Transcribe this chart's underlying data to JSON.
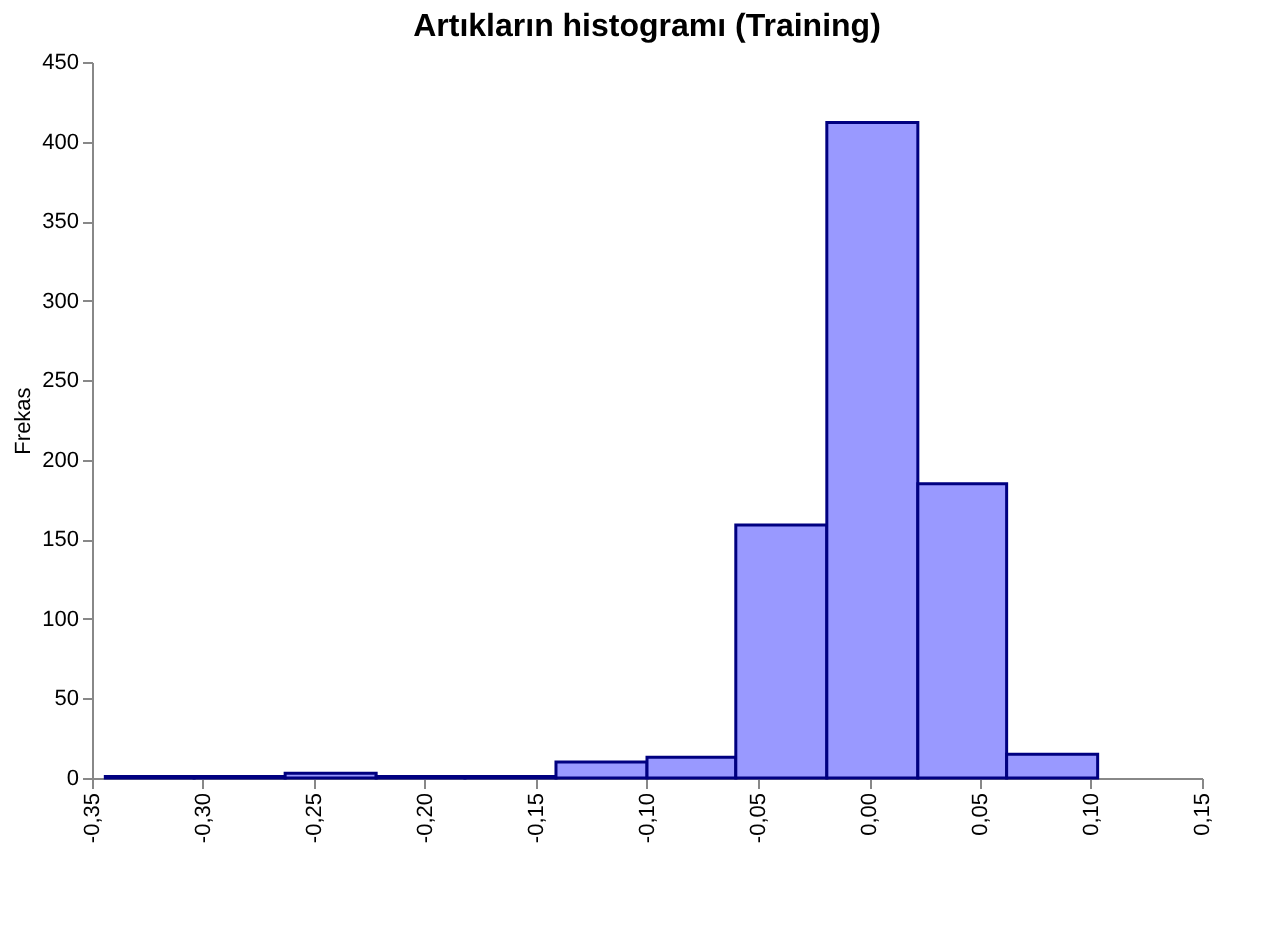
{
  "chart_data": {
    "type": "histogram",
    "title": "Artıkların histogramı (Training)",
    "ylabel": "Frekas",
    "bins": [
      -0.344,
      -0.304,
      -0.263,
      -0.222,
      -0.182,
      -0.141,
      -0.1,
      -0.06,
      -0.019,
      0.022,
      0.062,
      0.103
    ],
    "values": [
      1,
      1,
      3,
      1,
      1,
      10,
      13,
      159,
      412,
      185,
      15
    ],
    "color": "#9999ff",
    "xlim": [
      -0.35,
      0.15
    ],
    "xticks": [
      {
        "value": -0.35,
        "label": "-0,35"
      },
      {
        "value": -0.3,
        "label": "-0,30"
      },
      {
        "value": -0.25,
        "label": "-0,25"
      },
      {
        "value": -0.2,
        "label": "-0,20"
      },
      {
        "value": -0.15,
        "label": "-0,15"
      },
      {
        "value": -0.1,
        "label": "-0,10"
      },
      {
        "value": -0.05,
        "label": "-0,05"
      },
      {
        "value": 0,
        "label": "0,00"
      },
      {
        "value": 0.05,
        "label": "0,05"
      },
      {
        "value": 0.1,
        "label": "0,10"
      },
      {
        "value": 0.15,
        "label": "0,15"
      }
    ],
    "ylim": [
      0,
      450
    ],
    "yticks": [
      0,
      50,
      100,
      150,
      200,
      250,
      300,
      350,
      400,
      450
    ],
    "grid": false
  }
}
